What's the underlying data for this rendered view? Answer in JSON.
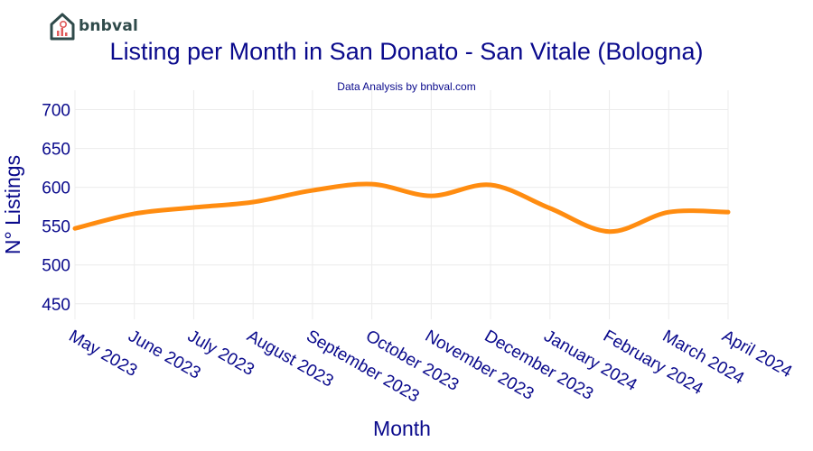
{
  "brand": {
    "name": "bnbval"
  },
  "chart_data": {
    "type": "line",
    "title": "Listing per Month in San Donato - San Vitale (Bologna)",
    "subtitle": "Data Analysis by bnbval.com",
    "xlabel": "Month",
    "ylabel": "N° Listings",
    "categories": [
      "May 2023",
      "June 2023",
      "July 2023",
      "August 2023",
      "September 2023",
      "October 2023",
      "November 2023",
      "December 2023",
      "January 2024",
      "February 2024",
      "March 2024",
      "April 2024"
    ],
    "series": [
      {
        "values": [
          547,
          566,
          574,
          581,
          596,
          604,
          589,
          603,
          573,
          543,
          568,
          568
        ]
      }
    ],
    "ylim": [
      430,
      725
    ],
    "yticks": [
      450,
      500,
      550,
      600,
      650,
      700
    ],
    "grid": true,
    "colors": {
      "line": "#ff8c10",
      "text": "#0a0a8c",
      "grid": "#ececec"
    }
  }
}
